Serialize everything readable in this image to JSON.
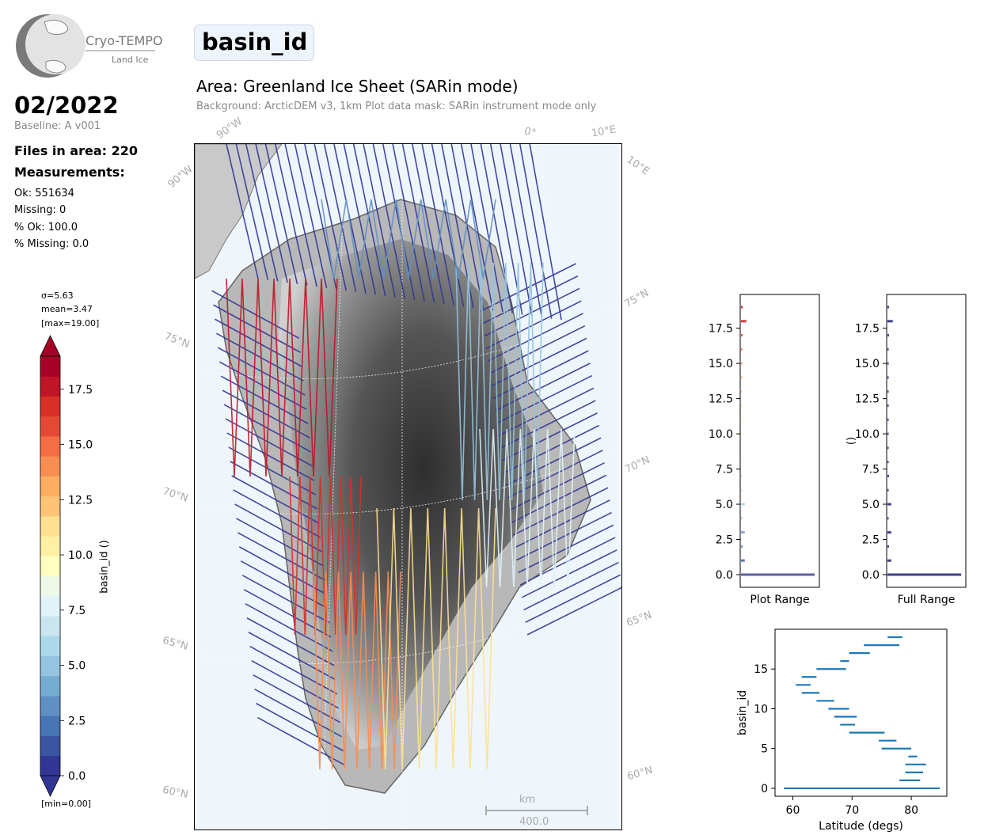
{
  "header": {
    "logo_title": "Cryo-TEMPO",
    "logo_subtitle": "Land Ice",
    "month": "02/2022",
    "baseline": "Baseline: A v001",
    "files_in_area": "Files in area: 220",
    "measurements_label": "Measurements:",
    "stats": [
      "Ok: 551634",
      "Missing: 0",
      "% Ok: 100.0",
      "% Missing: 0.0"
    ]
  },
  "title": {
    "variable": "basin_id",
    "area": "Area: Greenland Ice Sheet (SARin mode)",
    "background": "Background: ArcticDEM v3, 1km   Plot data mask: SARin instrument mode only"
  },
  "map": {
    "lat_labels_left": [
      "75°N",
      "70°N",
      "65°N",
      "60°N"
    ],
    "lat_labels_right": [
      "75°N",
      "70°N",
      "65°N",
      "60°N"
    ],
    "lon_labels": [
      "90°W",
      "90°W",
      "0°",
      "10°E",
      "10°E"
    ],
    "scalebar_unit": "km",
    "scalebar_value": "400.0"
  },
  "colorbar": {
    "label": "basin_id ()",
    "sigma": "σ=5.63",
    "mean": "mean=3.47",
    "max": "[max=19.00]",
    "min": "[min=0.00]",
    "range": [
      0,
      19
    ],
    "ticks": [
      "0.0",
      "2.5",
      "5.0",
      "7.5",
      "10.0",
      "12.5",
      "15.0",
      "17.5"
    ],
    "palette": [
      "#313695",
      "#3b55a2",
      "#4575b4",
      "#5f90c3",
      "#74add1",
      "#94c4df",
      "#abd9e9",
      "#c9e6f0",
      "#e0f3f8",
      "#eef8e8",
      "#ffffbf",
      "#fff0a4",
      "#fee090",
      "#fdc476",
      "#fdae61",
      "#f88d52",
      "#f46d43",
      "#e34a33",
      "#d73027",
      "#bd1626",
      "#a50026"
    ]
  },
  "chart_data": [
    {
      "type": "bar",
      "orientation": "horizontal",
      "title": "",
      "xlabel": "Plot Range",
      "ylabel": "",
      "ylim": [
        -0.9,
        19.9
      ],
      "yticks": [
        "0.0",
        "2.5",
        "5.0",
        "7.5",
        "10.0",
        "12.5",
        "15.0",
        "17.5"
      ],
      "categories": [
        0,
        1,
        2,
        3,
        4,
        5,
        6,
        7,
        8,
        9,
        10,
        11,
        12,
        13,
        14,
        15,
        16,
        17,
        18,
        19
      ],
      "values": [
        0.97,
        0.05,
        0.02,
        0.05,
        0.01,
        0.05,
        0.01,
        0.02,
        0.01,
        0.01,
        0.01,
        0.01,
        0.01,
        0.01,
        0.01,
        0.01,
        0.01,
        0.02,
        0.07,
        0.02
      ],
      "colors": [
        "#5b5ea6",
        "#5b73b5",
        "#6f8ec4",
        "#8aabd3",
        "#a5c4e0",
        "#b5d4eb",
        "#c5e3f0",
        "#d5ecf2",
        "#e6f4f4",
        "#f3f8e9",
        "#fffcc9",
        "#fff2b0",
        "#fee49a",
        "#fdcc81",
        "#fdb46a",
        "#f99256",
        "#f06b45",
        "#e34a33",
        "#cf3c3c",
        "#b81a2e"
      ]
    },
    {
      "type": "bar",
      "orientation": "horizontal",
      "title": "",
      "xlabel": "Full Range",
      "ylabel": "()",
      "ylim": [
        -0.9,
        19.9
      ],
      "yticks": [
        "0.0",
        "2.5",
        "5.0",
        "7.5",
        "10.0",
        "12.5",
        "15.0",
        "17.5"
      ],
      "categories": [
        0,
        1,
        2,
        3,
        4,
        5,
        6,
        7,
        8,
        9,
        10,
        11,
        12,
        13,
        14,
        15,
        16,
        17,
        18,
        19
      ],
      "values": [
        0.97,
        0.05,
        0.02,
        0.05,
        0.01,
        0.05,
        0.01,
        0.02,
        0.01,
        0.01,
        0.01,
        0.01,
        0.01,
        0.01,
        0.01,
        0.01,
        0.01,
        0.02,
        0.07,
        0.02
      ],
      "color": "#3e3f8f"
    },
    {
      "type": "range",
      "title": "",
      "xlabel": "Latitude (degs)",
      "ylabel": "basin_id",
      "xlim": [
        57,
        86
      ],
      "ylim": [
        -1,
        20
      ],
      "xticks": [
        "60",
        "70",
        "80"
      ],
      "yticks": [
        "0",
        "5",
        "10",
        "15"
      ],
      "segments": [
        {
          "id": 0,
          "lat": [
            58.5,
            84.8
          ]
        },
        {
          "id": 1,
          "lat": [
            78.0,
            81.5
          ]
        },
        {
          "id": 2,
          "lat": [
            79.0,
            82.0
          ]
        },
        {
          "id": 3,
          "lat": [
            79.0,
            82.5
          ]
        },
        {
          "id": 4,
          "lat": [
            79.5,
            81.0
          ]
        },
        {
          "id": 5,
          "lat": [
            75.0,
            80.0
          ]
        },
        {
          "id": 6,
          "lat": [
            74.5,
            77.5
          ]
        },
        {
          "id": 7,
          "lat": [
            69.5,
            75.5
          ]
        },
        {
          "id": 8,
          "lat": [
            68.0,
            70.5
          ]
        },
        {
          "id": 9,
          "lat": [
            67.0,
            70.8
          ]
        },
        {
          "id": 10,
          "lat": [
            66.0,
            69.5
          ]
        },
        {
          "id": 11,
          "lat": [
            64.0,
            67.0
          ]
        },
        {
          "id": 12,
          "lat": [
            61.5,
            64.5
          ]
        },
        {
          "id": 13,
          "lat": [
            60.5,
            63.0
          ]
        },
        {
          "id": 14,
          "lat": [
            61.5,
            64.0
          ]
        },
        {
          "id": 15,
          "lat": [
            64.0,
            69.0
          ]
        },
        {
          "id": 16,
          "lat": [
            68.0,
            69.5
          ]
        },
        {
          "id": 17,
          "lat": [
            69.5,
            73.0
          ]
        },
        {
          "id": 18,
          "lat": [
            72.0,
            78.0
          ]
        },
        {
          "id": 19,
          "lat": [
            76.0,
            78.5
          ]
        }
      ],
      "color": "#1f77b4"
    }
  ]
}
